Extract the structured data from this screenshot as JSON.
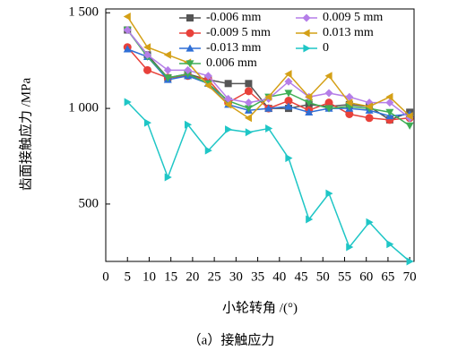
{
  "chart_data": {
    "type": "line",
    "x_label": "小轮转角 /(°)",
    "y_label": "齿面接触应力 /MPa",
    "caption": "（a）接触应力",
    "x": [
      5,
      9.6,
      14.3,
      18.9,
      23.6,
      28.2,
      32.9,
      37.5,
      42.1,
      46.8,
      51.4,
      56.1,
      60.7,
      65.4,
      70
    ],
    "series": [
      {
        "name": "-0.006 mm",
        "color": "#555555",
        "marker": "square",
        "values": [
          1410,
          1280,
          1160,
          1180,
          1150,
          1130,
          1130,
          1000,
          1000,
          1020,
          1010,
          1020,
          1010,
          940,
          980
        ]
      },
      {
        "name": "-0.009 5 mm",
        "color": "#e8413a",
        "marker": "circle",
        "values": [
          1320,
          1200,
          1160,
          1170,
          1150,
          1030,
          1090,
          1000,
          1040,
          990,
          1030,
          970,
          950,
          940,
          950
        ]
      },
      {
        "name": "-0.013 mm",
        "color": "#2f6fd6",
        "marker": "up",
        "values": [
          1310,
          1270,
          1150,
          1170,
          1130,
          1020,
          990,
          1000,
          1010,
          980,
          1000,
          1000,
          990,
          960,
          970
        ]
      },
      {
        "name": "0.006 mm",
        "color": "#3fae55",
        "marker": "down",
        "values": [
          1410,
          1270,
          1160,
          1180,
          1130,
          1040,
          1000,
          1060,
          1080,
          1030,
          1000,
          1010,
          1000,
          980,
          910
        ]
      },
      {
        "name": "0.009 5 mm",
        "color": "#b57ee8",
        "marker": "diamond",
        "values": [
          1410,
          1280,
          1200,
          1200,
          1170,
          1050,
          1030,
          1050,
          1140,
          1060,
          1080,
          1060,
          1030,
          1030,
          950
        ]
      },
      {
        "name": "0.013 mm",
        "color": "#d4a017",
        "marker": "left",
        "values": [
          1480,
          1320,
          1280,
          1240,
          1120,
          1020,
          950,
          1060,
          1180,
          1060,
          1170,
          1030,
          1010,
          1060,
          960
        ]
      },
      {
        "name": "0",
        "color": "#1fc6c6",
        "marker": "right",
        "values": [
          1033,
          925,
          640,
          915,
          780,
          890,
          875,
          895,
          740,
          420,
          555,
          275,
          405,
          290,
          200
        ]
      }
    ],
    "xlim": [
      0,
      71
    ],
    "ylim": [
      200,
      1520
    ],
    "xticks": [
      0,
      5,
      10,
      15,
      20,
      25,
      30,
      35,
      40,
      45,
      50,
      55,
      60,
      65,
      70
    ],
    "yticks": [
      500,
      {
        "value": 1000,
        "label": "1 000"
      },
      {
        "value": 1500,
        "label": "1 500"
      }
    ],
    "grid": false
  }
}
